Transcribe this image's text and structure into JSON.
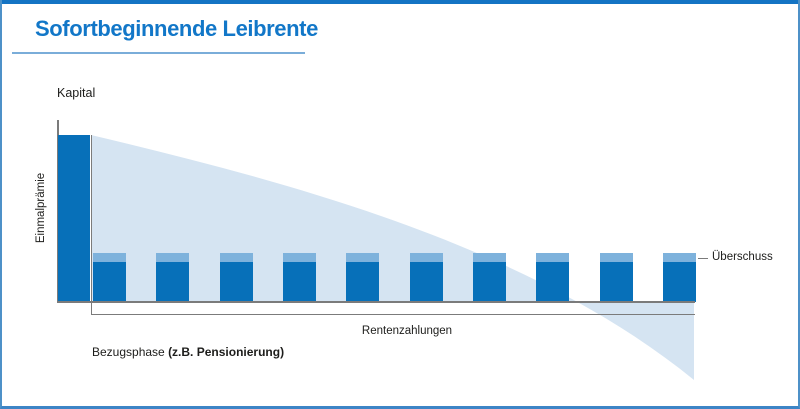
{
  "page": {
    "title": "Sofortbeginnende Leibrente"
  },
  "chart": {
    "y_axis_top_label": "Kapital",
    "y_axis_label": "Einmalprämie",
    "surplus_label": "Überschuss",
    "payments_label": "Rentenzahlungen",
    "phase_label_regular": "Bezugsphase ",
    "phase_label_bold": "(z.B. Pensionierung)",
    "payment_bars_count": 10,
    "colors": {
      "primary_blue": "#0770b9",
      "surplus_blue": "#7eb2dc",
      "capital_area_blue": "#d5e4f2",
      "title_blue": "#1277c8",
      "line_gray": "#7b7b7b"
    }
  },
  "chart_data": {
    "type": "area",
    "title": "Sofortbeginnende Leibrente",
    "ylabel": "Einmalprämie",
    "annotations": [
      "Kapital",
      "Überschuss",
      "Rentenzahlungen",
      "Bezugsphase (z.B. Pensionierung)"
    ],
    "description": "Schematic annuity diagram: one tall single-premium bar (Einmalprämie) at start; remaining capital (Kapital) shown as light blue area declining over the payout phase and crossing below the axis near the end; 10 equal pension payment bars (Rentenzahlungen), each topped by a small surplus segment (Überschuss).",
    "series": [
      {
        "name": "Einmalprämie",
        "role": "initial capital bar"
      },
      {
        "name": "Kapital",
        "role": "declining capital area"
      },
      {
        "name": "Rentenzahlungen",
        "role": "pension payment bars",
        "count": 10
      },
      {
        "name": "Überschuss",
        "role": "surplus cap on each payment bar"
      }
    ],
    "axes": {
      "x_ticks": [],
      "y_ticks": [],
      "grid": false
    }
  }
}
